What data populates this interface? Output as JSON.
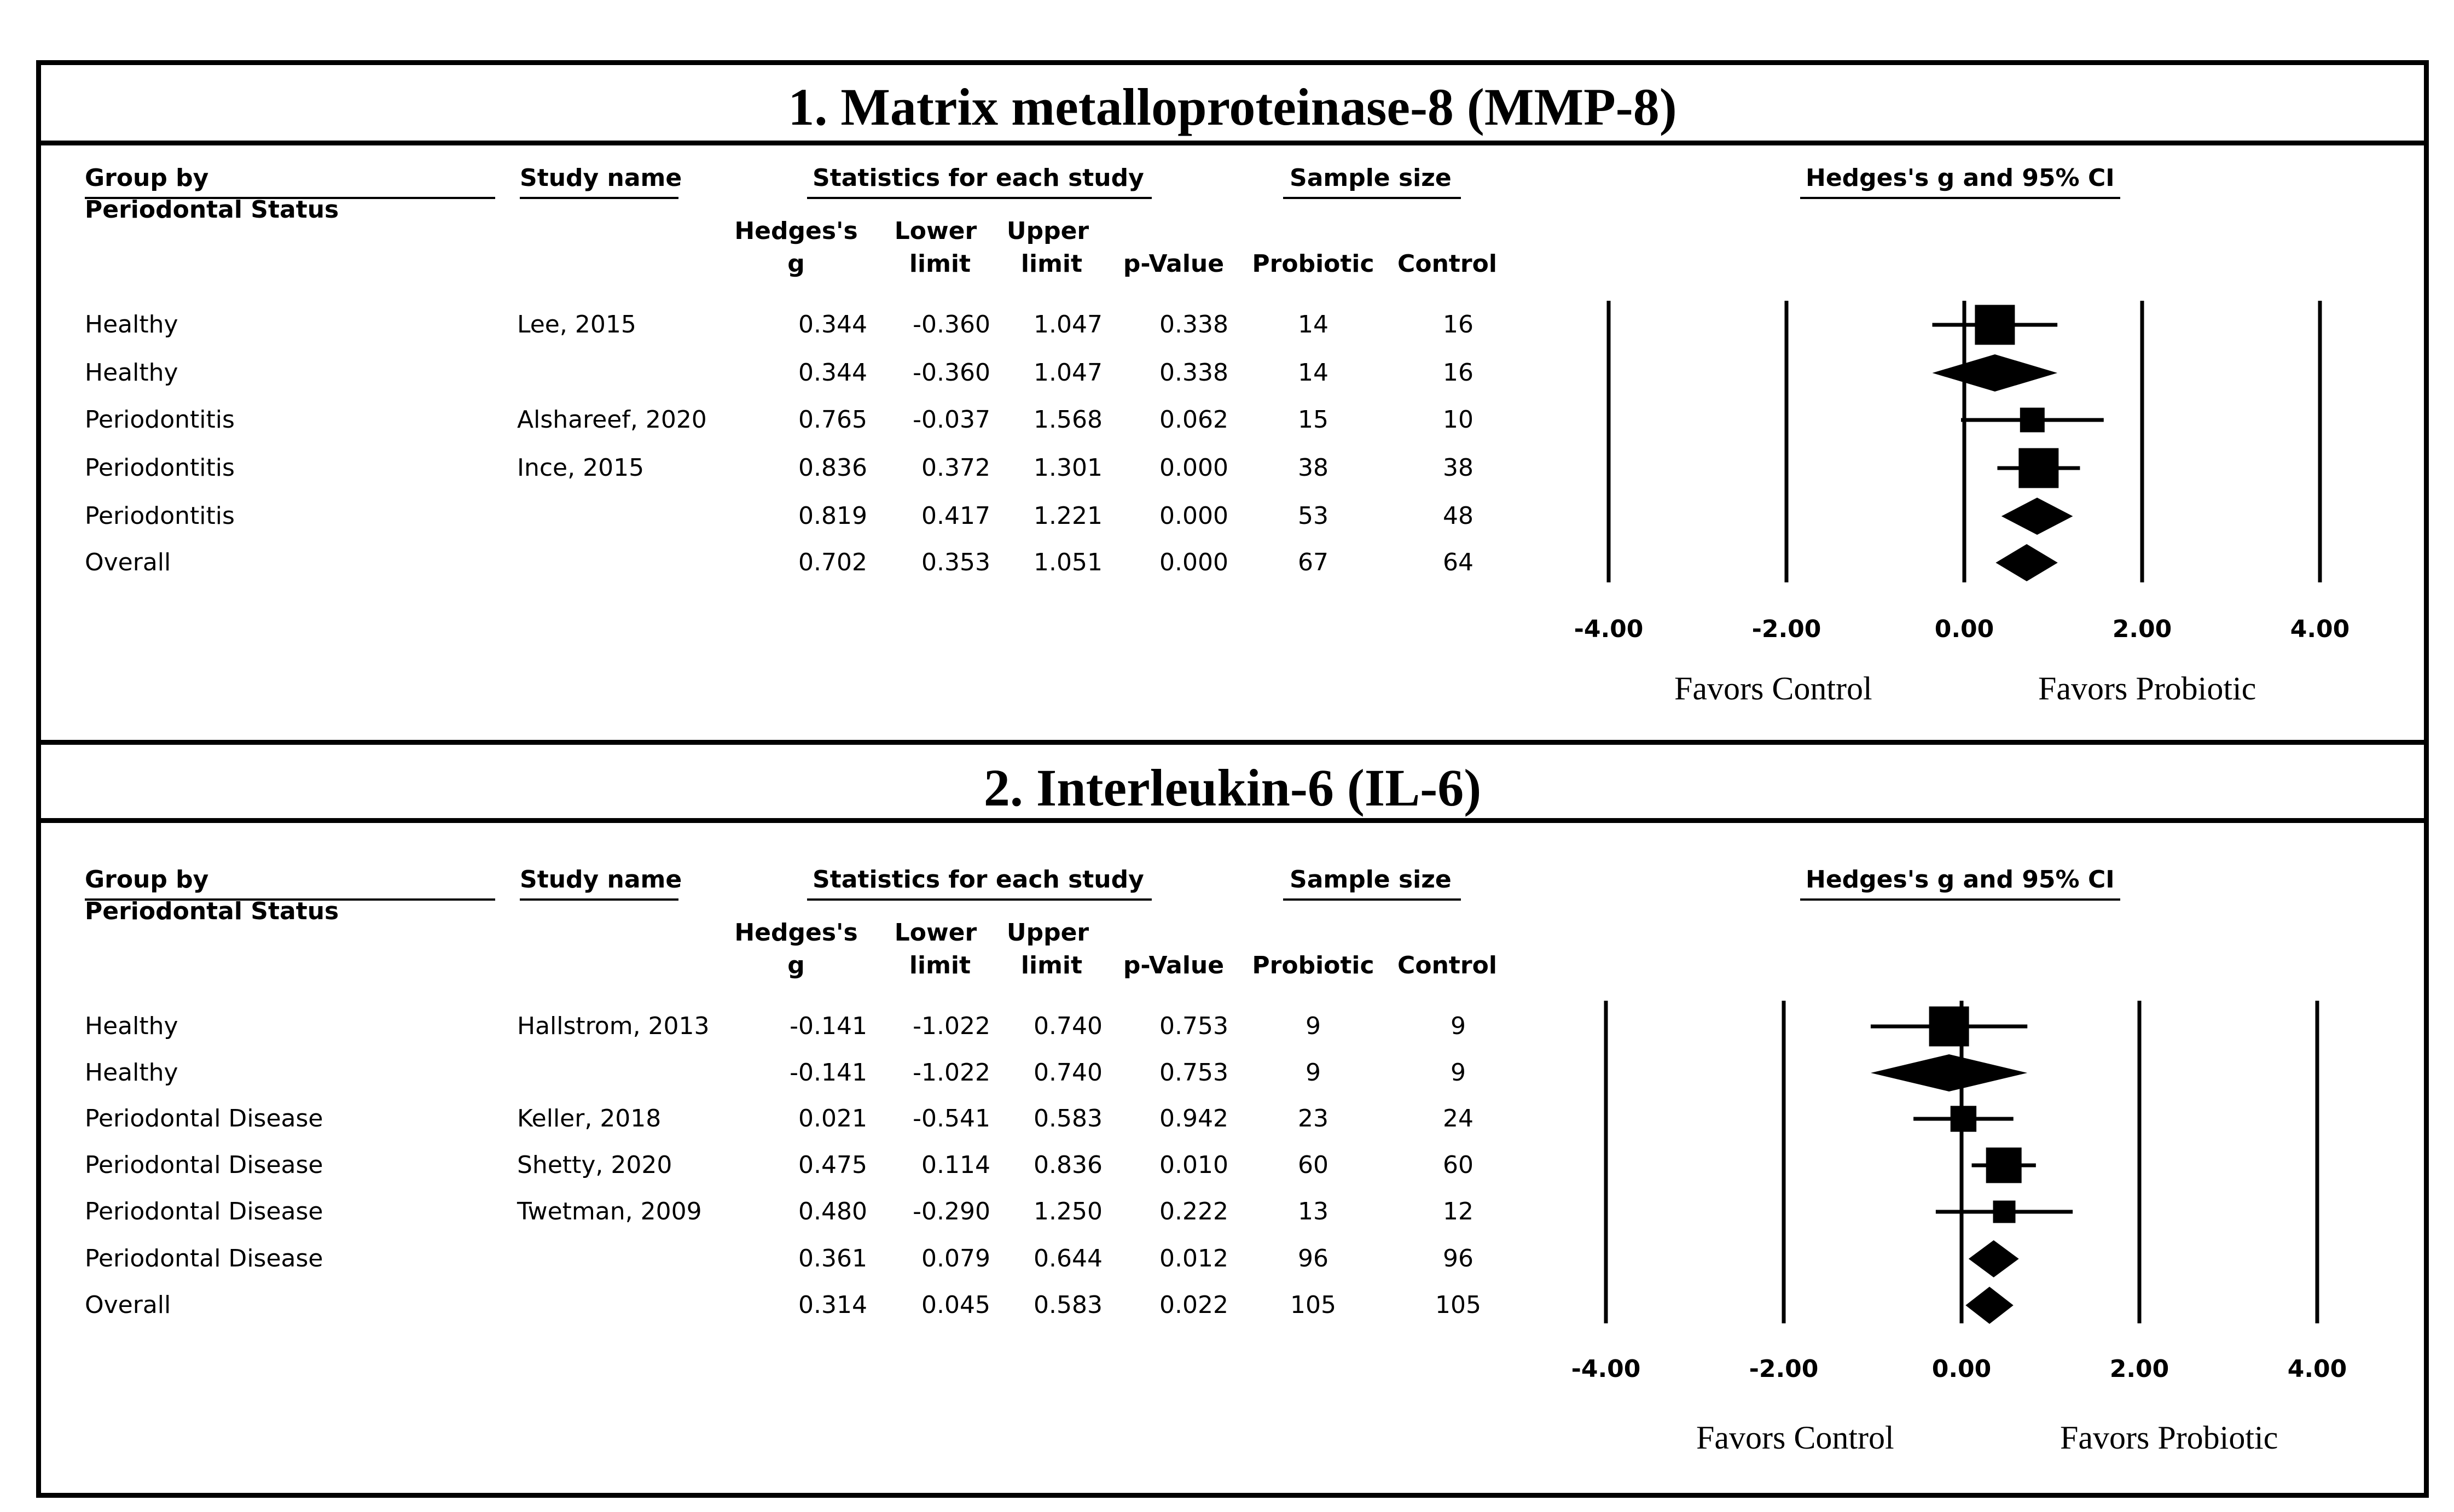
{
  "chart_data": [
    {
      "type": "forest",
      "title": "1. Matrix metalloproteinase-8 (MMP-8)",
      "headers": {
        "group": "Group by",
        "group2": "Periodontal Status",
        "study": "Study name",
        "stats": "Statistics for each study",
        "sample": "Sample size",
        "plot": "Hedges's g and 95% CI",
        "g1": "Hedges's",
        "g2": "g",
        "lower1": "Lower",
        "lower2": "limit",
        "upper1": "Upper",
        "upper2": "limit",
        "p": "p-Value",
        "probiotic": "Probiotic",
        "control": "Control"
      },
      "rows": [
        {
          "group": "Healthy",
          "study": "Lee, 2015",
          "g": "0.344",
          "lower": "-0.360",
          "upper": "1.047",
          "p": "0.338",
          "probiotic": "14",
          "control": "16",
          "kind": "study",
          "weight": 0.6
        },
        {
          "group": "Healthy",
          "study": "",
          "g": "0.344",
          "lower": "-0.360",
          "upper": "1.047",
          "p": "0.338",
          "probiotic": "14",
          "control": "16",
          "kind": "summary"
        },
        {
          "group": "Periodontitis",
          "study": "Alshareef, 2020",
          "g": "0.765",
          "lower": "-0.037",
          "upper": "1.568",
          "p": "0.062",
          "probiotic": "15",
          "control": "10",
          "kind": "study",
          "weight": 0.25
        },
        {
          "group": "Periodontitis",
          "study": "Ince, 2015",
          "g": "0.836",
          "lower": "0.372",
          "upper": "1.301",
          "p": "0.000",
          "probiotic": "38",
          "control": "38",
          "kind": "study",
          "weight": 0.6
        },
        {
          "group": "Periodontitis",
          "study": "",
          "g": "0.819",
          "lower": "0.417",
          "upper": "1.221",
          "p": "0.000",
          "probiotic": "53",
          "control": "48",
          "kind": "summary"
        },
        {
          "group": "Overall",
          "study": "",
          "g": "0.702",
          "lower": "0.353",
          "upper": "1.051",
          "p": "0.000",
          "probiotic": "67",
          "control": "64",
          "kind": "summary"
        }
      ],
      "xticks": [
        "-4.00",
        "-2.00",
        "0.00",
        "2.00",
        "4.00"
      ],
      "xlim": [
        -4,
        4
      ],
      "favors_left": "Favors Control",
      "favors_right": "Favors Probiotic"
    },
    {
      "type": "forest",
      "title": "2. Interleukin-6 (IL-6)",
      "headers": {
        "group": "Group by",
        "group2": "Periodontal Status",
        "study": "Study name",
        "stats": "Statistics for each study",
        "sample": "Sample size",
        "plot": "Hedges's g and 95% CI",
        "g1": "Hedges's",
        "g2": "g",
        "lower1": "Lower",
        "lower2": "limit",
        "upper1": "Upper",
        "upper2": "limit",
        "p": "p-Value",
        "probiotic": "Probiotic",
        "control": "Control"
      },
      "rows": [
        {
          "group": "Healthy",
          "study": "Hallstrom, 2013",
          "g": "-0.141",
          "lower": "-1.022",
          "upper": "0.740",
          "p": "0.753",
          "probiotic": "9",
          "control": "9",
          "kind": "study",
          "weight": 0.6
        },
        {
          "group": "Healthy",
          "study": "",
          "g": "-0.141",
          "lower": "-1.022",
          "upper": "0.740",
          "p": "0.753",
          "probiotic": "9",
          "control": "9",
          "kind": "summary"
        },
        {
          "group": "Periodontal Disease",
          "study": "Keller, 2018",
          "g": "0.021",
          "lower": "-0.541",
          "upper": "0.583",
          "p": "0.942",
          "probiotic": "23",
          "control": "24",
          "kind": "study",
          "weight": 0.28
        },
        {
          "group": "Periodontal Disease",
          "study": "Shetty, 2020",
          "g": "0.475",
          "lower": "0.114",
          "upper": "0.836",
          "p": "0.010",
          "probiotic": "60",
          "control": "60",
          "kind": "study",
          "weight": 0.5
        },
        {
          "group": "Periodontal Disease",
          "study": "Twetman, 2009",
          "g": "0.480",
          "lower": "-0.290",
          "upper": "1.250",
          "p": "0.222",
          "probiotic": "13",
          "control": "12",
          "kind": "study",
          "weight": 0.2
        },
        {
          "group": "Periodontal Disease",
          "study": "",
          "g": "0.361",
          "lower": "0.079",
          "upper": "0.644",
          "p": "0.012",
          "probiotic": "96",
          "control": "96",
          "kind": "summary"
        },
        {
          "group": "Overall",
          "study": "",
          "g": "0.314",
          "lower": "0.045",
          "upper": "0.583",
          "p": "0.022",
          "probiotic": "105",
          "control": "105",
          "kind": "summary"
        }
      ],
      "xticks": [
        "-4.00",
        "-2.00",
        "0.00",
        "2.00",
        "4.00"
      ],
      "xlim": [
        -4,
        4
      ],
      "favors_left": "Favors Control",
      "favors_right": "Favors Probiotic"
    }
  ]
}
